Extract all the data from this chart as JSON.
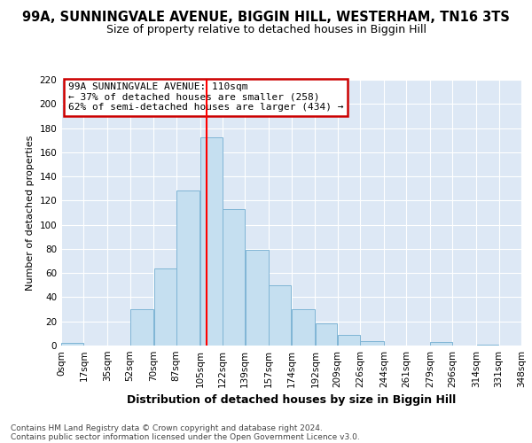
{
  "title": "99A, SUNNINGVALE AVENUE, BIGGIN HILL, WESTERHAM, TN16 3TS",
  "subtitle": "Size of property relative to detached houses in Biggin Hill",
  "xlabel": "Distribution of detached houses by size in Biggin Hill",
  "ylabel": "Number of detached properties",
  "bin_edges": [
    0,
    17,
    35,
    52,
    70,
    87,
    105,
    122,
    139,
    157,
    174,
    192,
    209,
    226,
    244,
    261,
    279,
    296,
    314,
    331,
    348
  ],
  "bin_labels": [
    "0sqm",
    "17sqm",
    "35sqm",
    "52sqm",
    "70sqm",
    "87sqm",
    "105sqm",
    "122sqm",
    "139sqm",
    "157sqm",
    "174sqm",
    "192sqm",
    "209sqm",
    "226sqm",
    "244sqm",
    "261sqm",
    "279sqm",
    "296sqm",
    "314sqm",
    "331sqm",
    "348sqm"
  ],
  "bar_heights": [
    2,
    0,
    0,
    30,
    64,
    128,
    172,
    113,
    79,
    50,
    30,
    18,
    9,
    4,
    0,
    0,
    3,
    0,
    1,
    0
  ],
  "bar_color": "#c5dff0",
  "bar_edge_color": "#7fb5d5",
  "property_line_x": 110,
  "property_line_color": "red",
  "ylim": [
    0,
    220
  ],
  "yticks": [
    0,
    20,
    40,
    60,
    80,
    100,
    120,
    140,
    160,
    180,
    200,
    220
  ],
  "annotation_title": "99A SUNNINGVALE AVENUE: 110sqm",
  "annotation_line1": "← 37% of detached houses are smaller (258)",
  "annotation_line2": "62% of semi-detached houses are larger (434) →",
  "annotation_box_facecolor": "#ffffff",
  "annotation_box_edgecolor": "#cc0000",
  "footer_line1": "Contains HM Land Registry data © Crown copyright and database right 2024.",
  "footer_line2": "Contains public sector information licensed under the Open Government Licence v3.0.",
  "bg_color": "#dde8f5",
  "title_fontsize": 10.5,
  "subtitle_fontsize": 9,
  "xlabel_fontsize": 9,
  "ylabel_fontsize": 8,
  "tick_fontsize": 7.5,
  "footer_fontsize": 6.5
}
